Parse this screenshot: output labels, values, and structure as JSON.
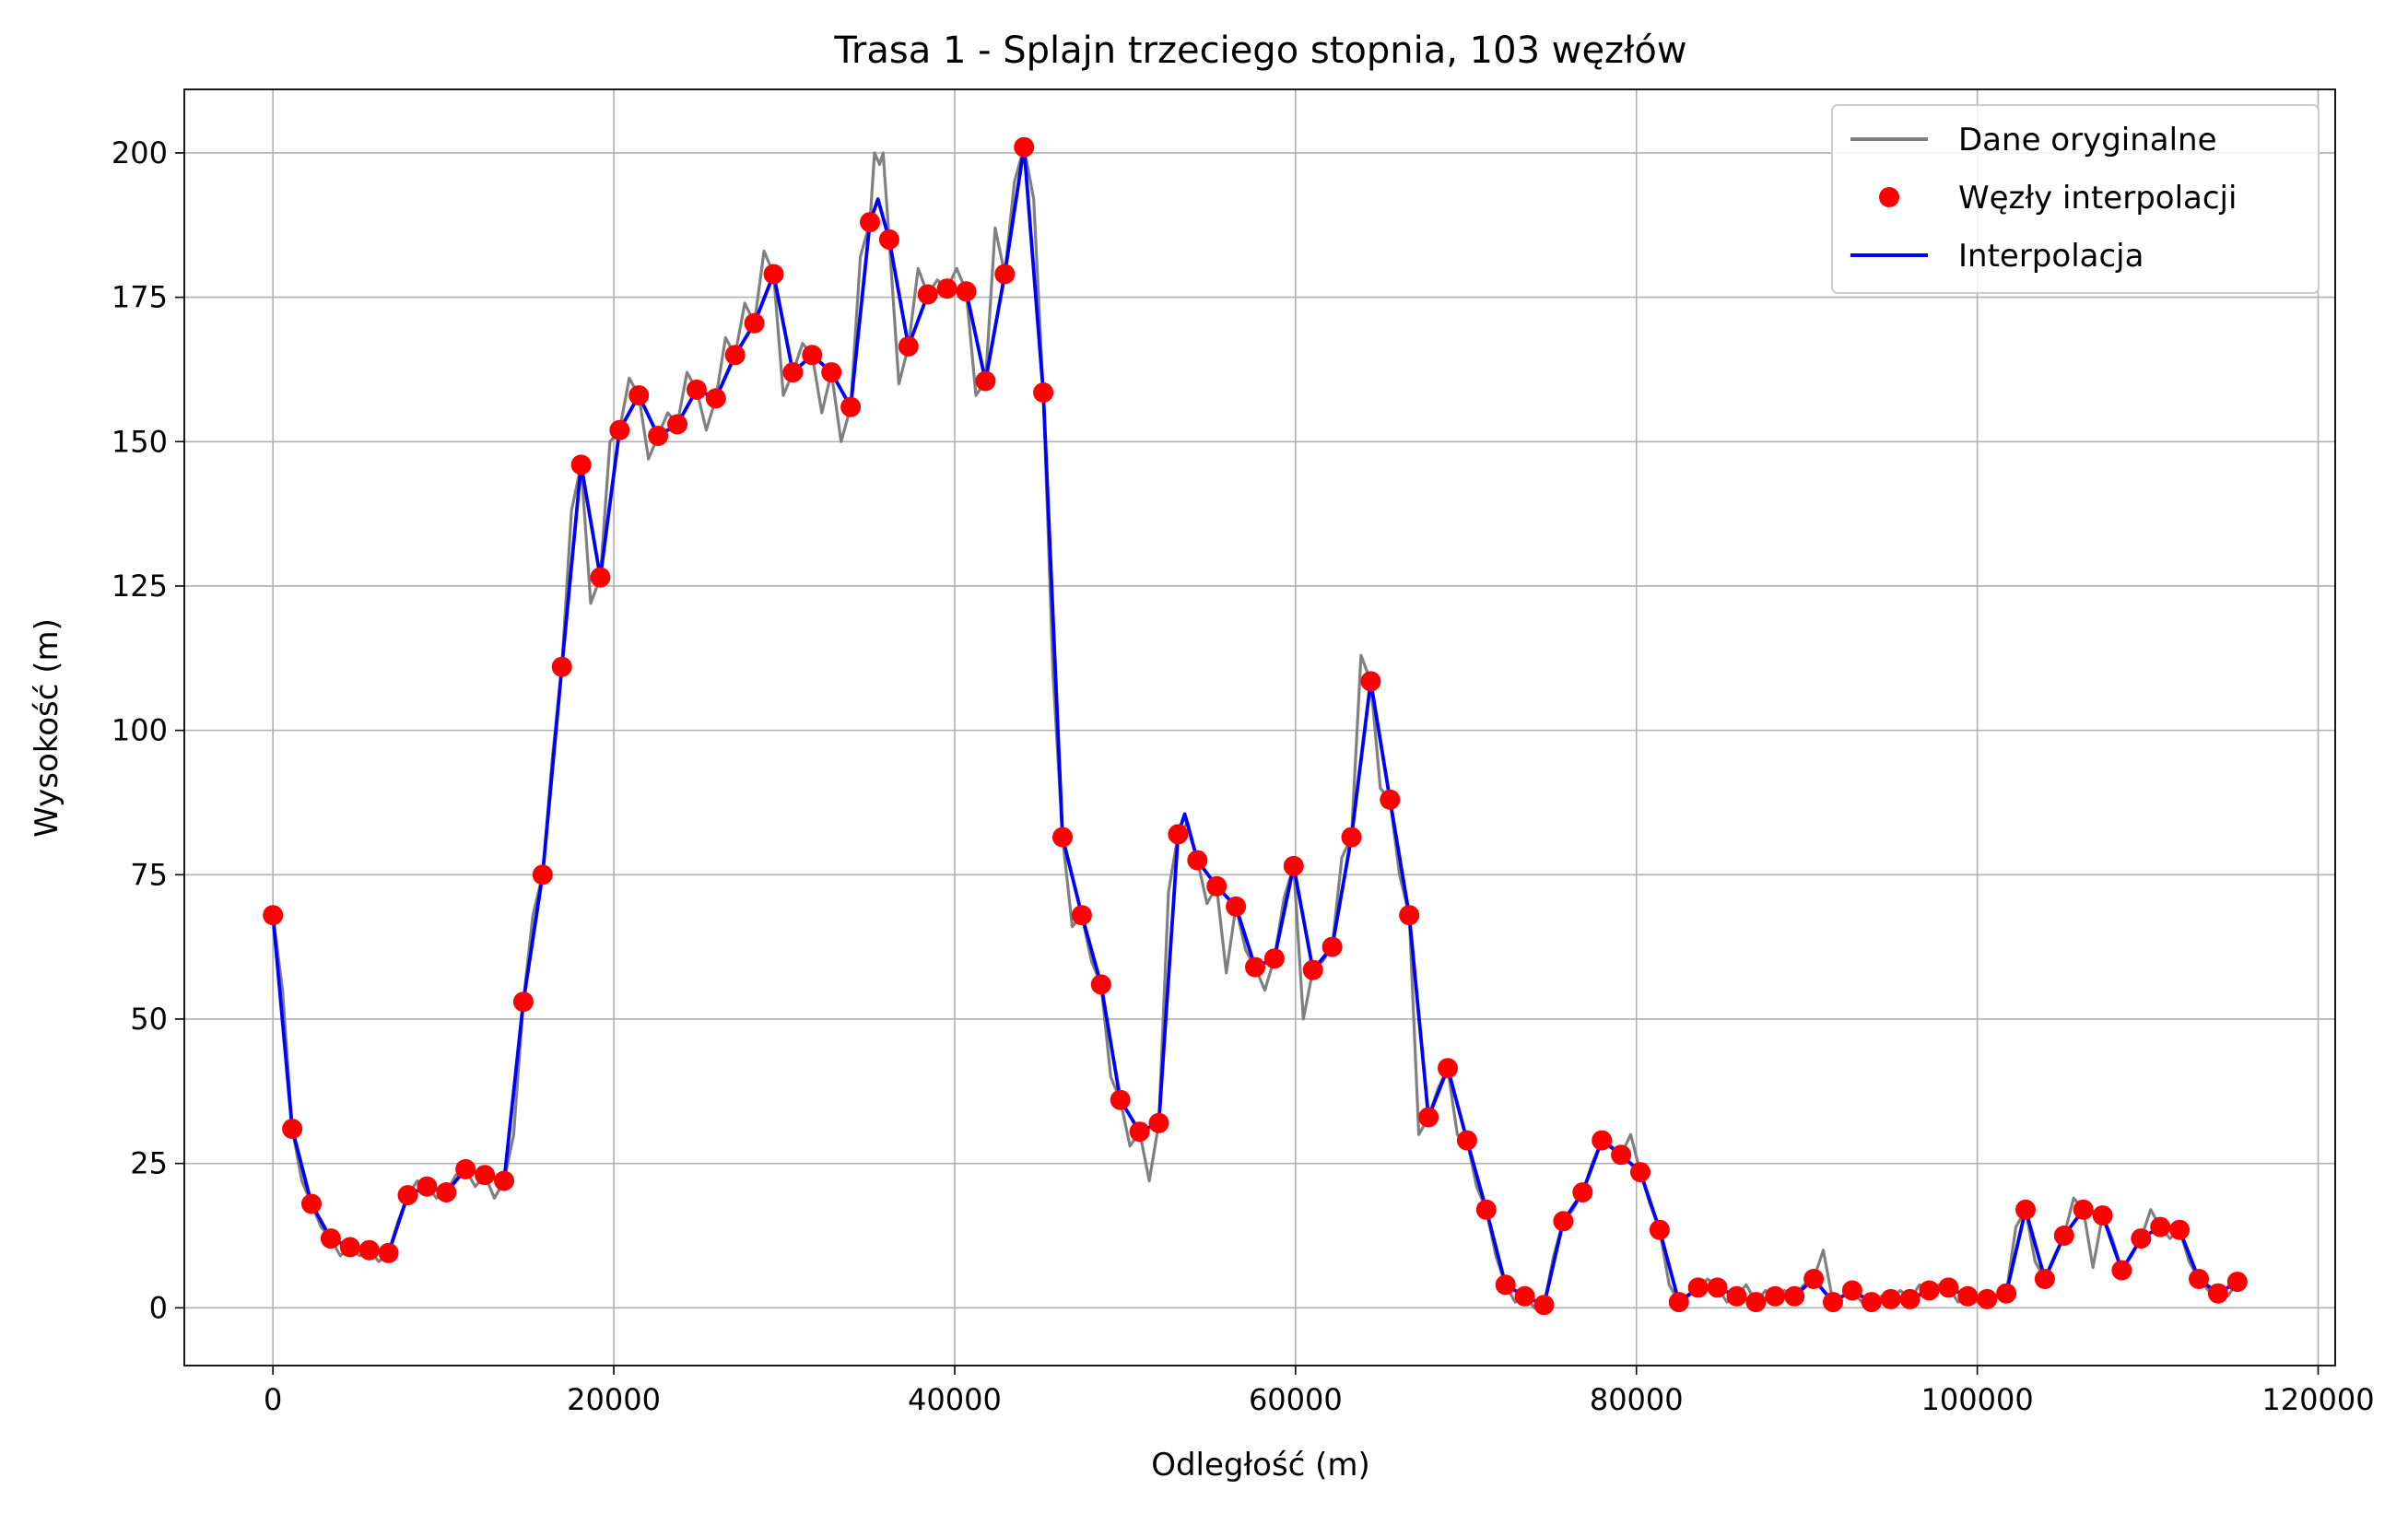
{
  "chart_data": {
    "type": "line",
    "title": "Trasa 1 - Splajn trzeciego stopnia, 103 węzłów",
    "xlabel": "Odległość (m)",
    "ylabel": "Wysokość (m)",
    "xlim": [
      -5200,
      121000
    ],
    "ylim": [
      -10,
      211
    ],
    "xticks": [
      0,
      20000,
      40000,
      60000,
      80000,
      100000,
      120000
    ],
    "yticks": [
      0,
      25,
      50,
      75,
      100,
      125,
      150,
      175,
      200
    ],
    "grid": true,
    "legend_position": "top-right",
    "legend": [
      "Dane oryginalne",
      "Węzły interpolacji",
      "Interpolacja"
    ],
    "colors": {
      "original": "#808080",
      "nodes": "#ff0000",
      "interpolation": "#0000ff"
    },
    "nodes": {
      "x": [
        0,
        1130,
        2260,
        3390,
        4520,
        5650,
        6780,
        7910,
        9040,
        10170,
        11300,
        12430,
        13560,
        14690,
        15820,
        16950,
        18080,
        19210,
        20340,
        21470,
        22600,
        23730,
        24860,
        25990,
        27120,
        28250,
        29380,
        30510,
        31640,
        32770,
        33900,
        35030,
        36160,
        37290,
        38420,
        39550,
        40680,
        41810,
        42940,
        44070,
        45200,
        46330,
        47460,
        48590,
        49720,
        50850,
        51980,
        53110,
        54240,
        55370,
        56500,
        57630,
        58760,
        59890,
        61020,
        62150,
        63280,
        64410,
        65540,
        66670,
        67800,
        68930,
        70060,
        71190,
        72320,
        73450,
        74580,
        75710,
        76840,
        77970,
        79100,
        80230,
        81360,
        82490,
        83620,
        84750,
        85880,
        87010,
        88140,
        89270,
        90400,
        91530,
        92660,
        93790,
        94920,
        96050,
        97180,
        98310,
        99440,
        100570,
        101700,
        102830,
        103960,
        105090,
        106220,
        107350,
        108480,
        109610,
        110740,
        111870,
        113000,
        114130,
        115260
      ],
      "y": [
        68,
        31,
        18,
        12,
        10.5,
        10,
        9.5,
        19.5,
        21,
        20,
        24,
        23,
        22,
        53,
        75,
        111,
        146,
        126.5,
        152,
        158,
        151,
        153,
        159,
        157.5,
        165,
        170.5,
        179,
        162,
        165,
        162,
        156,
        188,
        185,
        166.5,
        175.5,
        176.5,
        176,
        160.5,
        179,
        201,
        158.5,
        81.5,
        68,
        56,
        36,
        30.5,
        32,
        82,
        77.5,
        73,
        69.5,
        59,
        60.5,
        76.5,
        58.5,
        62.5,
        81.5,
        108.5,
        88,
        68,
        33,
        41.5,
        29,
        17,
        4,
        2,
        0.5,
        15,
        20,
        29,
        26.5,
        23.5,
        13.5,
        1,
        3.5,
        3.5,
        2,
        1,
        2,
        2,
        5,
        1,
        3,
        1,
        1.5,
        1.5,
        3,
        3.5,
        2,
        1.5,
        2.5,
        17,
        5,
        12.5,
        17,
        16,
        6.5,
        12,
        14,
        13.5,
        5,
        2.5,
        4.5
      ]
    },
    "interpolation": {
      "x": [
        0,
        1130,
        2260,
        3390,
        4520,
        5650,
        6780,
        7910,
        9040,
        10170,
        11300,
        12430,
        13560,
        14690,
        15820,
        16950,
        18080,
        19210,
        20340,
        21470,
        22600,
        23730,
        24860,
        25990,
        27120,
        28250,
        29380,
        30510,
        31640,
        32770,
        33900,
        35030,
        35500,
        36160,
        37290,
        38420,
        39550,
        40680,
        41810,
        42940,
        44070,
        45200,
        46330,
        47460,
        48590,
        49720,
        50850,
        51980,
        53110,
        53500,
        54240,
        55370,
        56500,
        57630,
        58760,
        59890,
        61020,
        62150,
        63280,
        64410,
        65540,
        66670,
        67800,
        68930,
        70060,
        71190,
        72320,
        73450,
        74580,
        75710,
        76840,
        77970,
        79100,
        80230,
        81360,
        82490,
        83620,
        84750,
        85880,
        87010,
        88140,
        89270,
        90400,
        91530,
        92660,
        93790,
        94920,
        96050,
        97180,
        98310,
        99440,
        100570,
        101700,
        102830,
        103960,
        105090,
        106220,
        107350,
        108480,
        109610,
        110740,
        111870,
        113000,
        114130,
        115260
      ],
      "y": [
        68,
        31,
        18,
        12,
        10.5,
        10,
        9.5,
        19.5,
        21,
        20,
        24,
        23,
        22,
        53,
        75,
        111,
        146,
        126.5,
        152,
        158,
        151,
        153,
        159,
        157.5,
        165,
        170.5,
        179,
        162,
        165,
        162,
        156,
        188,
        192,
        185,
        166.5,
        175.5,
        176.5,
        176,
        160.5,
        179,
        201,
        158.5,
        81.5,
        68,
        56,
        36,
        30.5,
        32,
        82,
        85.5,
        77.5,
        73,
        69.5,
        59,
        60.5,
        76.5,
        58.5,
        62.5,
        81.5,
        108.5,
        88,
        68,
        33,
        41.5,
        29,
        17,
        4,
        2,
        0.5,
        15,
        20,
        29,
        26.5,
        23.5,
        13.5,
        1,
        3.5,
        3.5,
        2,
        1,
        2,
        2,
        5,
        1,
        3,
        1,
        1.5,
        1.5,
        3,
        3.5,
        2,
        1.5,
        2.5,
        17,
        5,
        12.5,
        17,
        16,
        6.5,
        12,
        14,
        13.5,
        5,
        2.5,
        4.5
      ]
    },
    "original": {
      "x": [
        0,
        565,
        1130,
        1695,
        2260,
        2825,
        3390,
        3955,
        4520,
        5085,
        5650,
        6215,
        6780,
        7345,
        7910,
        8475,
        9040,
        9605,
        10170,
        10735,
        11300,
        11865,
        12430,
        12995,
        13560,
        14125,
        14690,
        15255,
        15820,
        16385,
        16950,
        17515,
        18080,
        18645,
        19210,
        19775,
        20340,
        20905,
        21470,
        22035,
        22600,
        23165,
        23730,
        24295,
        24860,
        25425,
        25990,
        26555,
        27120,
        27685,
        28250,
        28815,
        29380,
        29945,
        30510,
        31075,
        31640,
        32205,
        32770,
        33335,
        33900,
        34465,
        35030,
        35300,
        35595,
        35800,
        36160,
        36725,
        37290,
        37855,
        38420,
        38985,
        39550,
        40115,
        40680,
        41245,
        41810,
        42375,
        42940,
        43505,
        44070,
        44635,
        45200,
        45765,
        46330,
        46895,
        47460,
        48025,
        48590,
        49155,
        49720,
        50285,
        50850,
        51415,
        51980,
        52545,
        53110,
        53675,
        54240,
        54805,
        55370,
        55935,
        56500,
        57065,
        57630,
        58195,
        58760,
        59325,
        59890,
        60455,
        61020,
        61585,
        62150,
        62715,
        63280,
        63845,
        64410,
        64975,
        65540,
        66105,
        66670,
        67235,
        67800,
        68365,
        68930,
        69495,
        70060,
        70625,
        71190,
        71755,
        72320,
        72885,
        73450,
        74015,
        74580,
        75145,
        75710,
        76275,
        76840,
        77405,
        77970,
        78535,
        79100,
        79665,
        80230,
        80795,
        81360,
        81925,
        82490,
        83055,
        83620,
        84185,
        84750,
        85315,
        85880,
        86445,
        87010,
        87575,
        88140,
        88705,
        89270,
        89835,
        90400,
        90965,
        91530,
        92095,
        92660,
        93225,
        93790,
        94355,
        94920,
        95485,
        96050,
        96615,
        97180,
        97745,
        98310,
        98875,
        99440,
        100005,
        100570,
        101135,
        101700,
        102265,
        102830,
        103395,
        103960,
        104525,
        105090,
        105655,
        106220,
        106785,
        107350,
        107915,
        108480,
        109045,
        109610,
        110175,
        110740,
        111305,
        111870,
        112435,
        113000,
        113565,
        114130,
        114695,
        115260
      ],
      "y": [
        68,
        55,
        31,
        22,
        18,
        14,
        12,
        9,
        10.5,
        9,
        10,
        8,
        9.5,
        15,
        19.5,
        22,
        21,
        19,
        20,
        23,
        24,
        21,
        23,
        19,
        22,
        30,
        53,
        68,
        75,
        95,
        111,
        138,
        146,
        122,
        126.5,
        150,
        152,
        161,
        158,
        147,
        151,
        155,
        153,
        162,
        159,
        152,
        157.5,
        168,
        165,
        174,
        170.5,
        183,
        179,
        158,
        162,
        167,
        165,
        155,
        162,
        150,
        156,
        182,
        188,
        200,
        198,
        200,
        185,
        160,
        166.5,
        180,
        175.5,
        178,
        176.5,
        180,
        176,
        158,
        160.5,
        187,
        179,
        195,
        201,
        192,
        158.5,
        110,
        81.5,
        66,
        68,
        60,
        56,
        40,
        36,
        28,
        30.5,
        22,
        32,
        72,
        82,
        84,
        77.5,
        70,
        73,
        58,
        69.5,
        62,
        59,
        55,
        60.5,
        71,
        76.5,
        50,
        58.5,
        60,
        62.5,
        78,
        81.5,
        113,
        108.5,
        90,
        88,
        75,
        68,
        30,
        33,
        38,
        41.5,
        30,
        29,
        21,
        17,
        9,
        4,
        1,
        2,
        0,
        0.5,
        9,
        15,
        17,
        20,
        25,
        29,
        28,
        26.5,
        30,
        23.5,
        18,
        13.5,
        4,
        1,
        2,
        3.5,
        5,
        3.5,
        1,
        2,
        4,
        1,
        3,
        2,
        3,
        2,
        4,
        5,
        10,
        1,
        2,
        3,
        1,
        1,
        2,
        1.5,
        3,
        1.5,
        4,
        3,
        4,
        3.5,
        1,
        2,
        1,
        1.5,
        2,
        2.5,
        14,
        17,
        8,
        5,
        9,
        12.5,
        19,
        17,
        7,
        16,
        12,
        6.5,
        9,
        12,
        17,
        14,
        12,
        13.5,
        8,
        5,
        3,
        2.5,
        2,
        4.5
      ]
    }
  }
}
